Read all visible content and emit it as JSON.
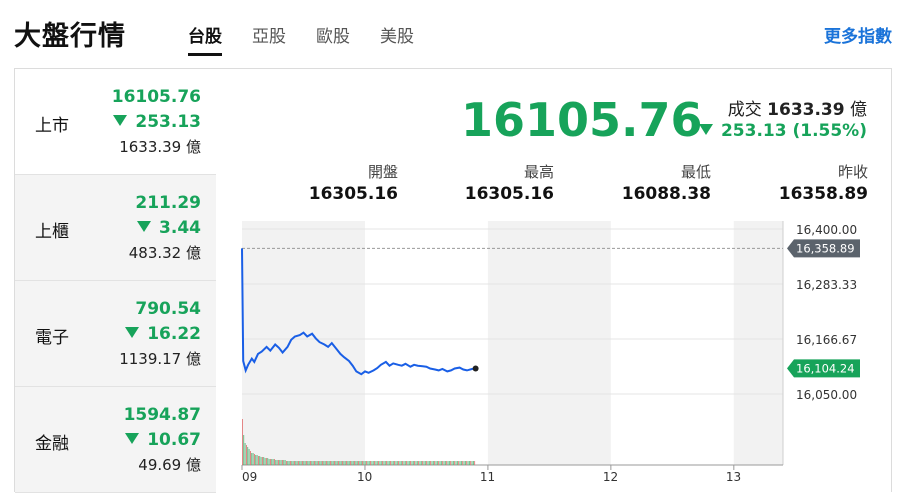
{
  "header": {
    "title": "大盤行情",
    "tabs": [
      "台股",
      "亞股",
      "歐股",
      "美股"
    ],
    "active_tab": "台股",
    "more_link": "更多指數"
  },
  "sidebar": {
    "items": [
      {
        "name": "上市",
        "value": "16105.76",
        "change": "253.13",
        "volume": "1633.39 億",
        "direction": "down"
      },
      {
        "name": "上櫃",
        "value": "211.29",
        "change": "3.44",
        "volume": "483.32 億",
        "direction": "down"
      },
      {
        "name": "電子",
        "value": "790.54",
        "change": "16.22",
        "volume": "1139.17 億",
        "direction": "down"
      },
      {
        "name": "金融",
        "value": "1594.87",
        "change": "10.67",
        "volume": "49.69 億",
        "direction": "down"
      }
    ]
  },
  "main": {
    "price": "16105.76",
    "volume_label": "成交",
    "volume_value": "1633.39",
    "volume_unit": "億",
    "change": "253.13 (1.55%)",
    "stats": [
      {
        "label": "開盤",
        "value": "16305.16"
      },
      {
        "label": "最高",
        "value": "16305.16"
      },
      {
        "label": "最低",
        "value": "16088.38"
      },
      {
        "label": "昨收",
        "value": "16358.89"
      }
    ]
  },
  "colors": {
    "down": "#17a35a",
    "line": "#1a5fe6",
    "accent": "#1a73d9"
  },
  "chart_data": {
    "type": "line",
    "x_ticks": [
      "09",
      "10",
      "11",
      "12",
      "13"
    ],
    "y_ticks": [
      "16,400.00",
      "16,283.33",
      "16,166.67",
      "16,050.00"
    ],
    "y_tick_values": [
      16400,
      16283.33,
      16166.67,
      16050
    ],
    "ylim": [
      16050,
      16400
    ],
    "reference": {
      "label": "16,358.89",
      "value": 16358.89
    },
    "last": {
      "label": "16,104.24",
      "value": 16104.24
    },
    "series": [
      {
        "points": [
          [
            9.0,
            16358.9
          ],
          [
            9.01,
            16120
          ],
          [
            9.03,
            16100
          ],
          [
            9.05,
            16112
          ],
          [
            9.08,
            16125
          ],
          [
            9.1,
            16118
          ],
          [
            9.13,
            16135
          ],
          [
            9.16,
            16140
          ],
          [
            9.2,
            16150
          ],
          [
            9.23,
            16142
          ],
          [
            9.27,
            16155
          ],
          [
            9.3,
            16148
          ],
          [
            9.33,
            16138
          ],
          [
            9.37,
            16150
          ],
          [
            9.4,
            16165
          ],
          [
            9.43,
            16172
          ],
          [
            9.47,
            16175
          ],
          [
            9.5,
            16180
          ],
          [
            9.53,
            16172
          ],
          [
            9.57,
            16178
          ],
          [
            9.6,
            16168
          ],
          [
            9.63,
            16160
          ],
          [
            9.67,
            16155
          ],
          [
            9.7,
            16150
          ],
          [
            9.73,
            16158
          ],
          [
            9.77,
            16145
          ],
          [
            9.8,
            16135
          ],
          [
            9.83,
            16128
          ],
          [
            9.87,
            16120
          ],
          [
            9.9,
            16110
          ],
          [
            9.93,
            16098
          ],
          [
            9.97,
            16092
          ],
          [
            10.0,
            16098
          ],
          [
            10.03,
            16095
          ],
          [
            10.07,
            16100
          ],
          [
            10.1,
            16105
          ],
          [
            10.13,
            16112
          ],
          [
            10.17,
            16118
          ],
          [
            10.2,
            16110
          ],
          [
            10.23,
            16115
          ],
          [
            10.27,
            16112
          ],
          [
            10.3,
            16110
          ],
          [
            10.33,
            16114
          ],
          [
            10.37,
            16108
          ],
          [
            10.4,
            16112
          ],
          [
            10.43,
            16110
          ],
          [
            10.47,
            16109
          ],
          [
            10.5,
            16108
          ],
          [
            10.53,
            16104
          ],
          [
            10.57,
            16102
          ],
          [
            10.6,
            16100
          ],
          [
            10.63,
            16103
          ],
          [
            10.67,
            16098
          ],
          [
            10.7,
            16100
          ],
          [
            10.73,
            16104
          ],
          [
            10.77,
            16106
          ],
          [
            10.8,
            16102
          ],
          [
            10.83,
            16100
          ],
          [
            10.87,
            16103
          ],
          [
            10.9,
            16104
          ]
        ]
      }
    ],
    "volume_bars": [
      60,
      30,
      22,
      20,
      18,
      16,
      14,
      12,
      12,
      11,
      10,
      10,
      9,
      9,
      8,
      8,
      8,
      7,
      7,
      7,
      6,
      6,
      6,
      6,
      6,
      5,
      5,
      5,
      5,
      5,
      5,
      5,
      5,
      4,
      4,
      4,
      4,
      4,
      4,
      4,
      4,
      4,
      4,
      4,
      4,
      4,
      4,
      4,
      4,
      4,
      4,
      4,
      4,
      4,
      4,
      4,
      4,
      4,
      4,
      4,
      4,
      4,
      4,
      4,
      4,
      4,
      4,
      4,
      4,
      4,
      4,
      4,
      4,
      4,
      4,
      4,
      4,
      4,
      4,
      4,
      4,
      4,
      4,
      4,
      4,
      4,
      4,
      4,
      4,
      4,
      4,
      4,
      4,
      4,
      4,
      4,
      4,
      4,
      4,
      4,
      4,
      4,
      4,
      4,
      4,
      4,
      4,
      4,
      4,
      4,
      4,
      4,
      4,
      4,
      4,
      4,
      4,
      4,
      4,
      4,
      4,
      4,
      4,
      4,
      4,
      4,
      4,
      4,
      4,
      4,
      4,
      4,
      4,
      4,
      4,
      4,
      4,
      4,
      4,
      4,
      4,
      4,
      4,
      4,
      4,
      4,
      4,
      4,
      4,
      4,
      4,
      4,
      4,
      4,
      4,
      4,
      4,
      4,
      4,
      4,
      4,
      4,
      4,
      4,
      4,
      4,
      4,
      4,
      4,
      4,
      4,
      4,
      4,
      4,
      4
    ]
  }
}
